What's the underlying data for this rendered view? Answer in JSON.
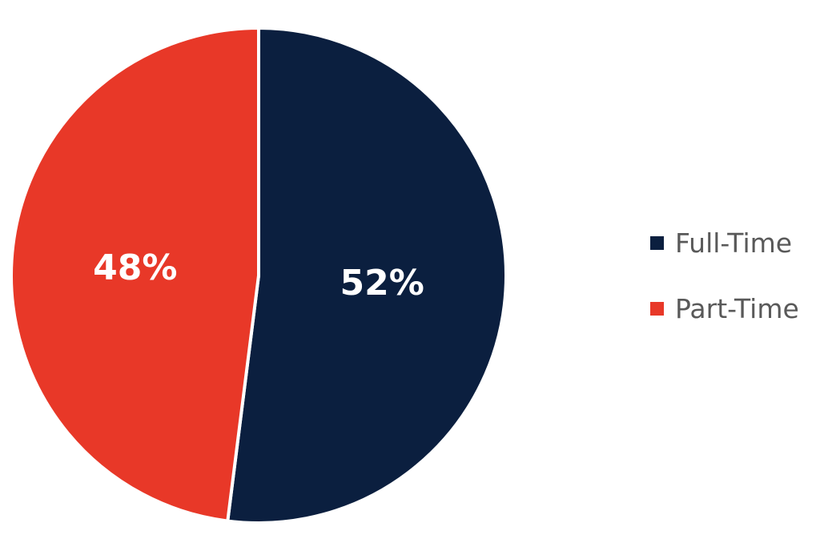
{
  "chart_data": {
    "type": "pie",
    "categories": [
      "Full-Time",
      "Part-Time"
    ],
    "values": [
      52,
      48
    ],
    "labels": [
      "52%",
      "48%"
    ],
    "colors": [
      "#0b1f3f",
      "#e83828"
    ],
    "start_angle_deg": 0,
    "direction": "clockwise",
    "legend_position": "right"
  }
}
